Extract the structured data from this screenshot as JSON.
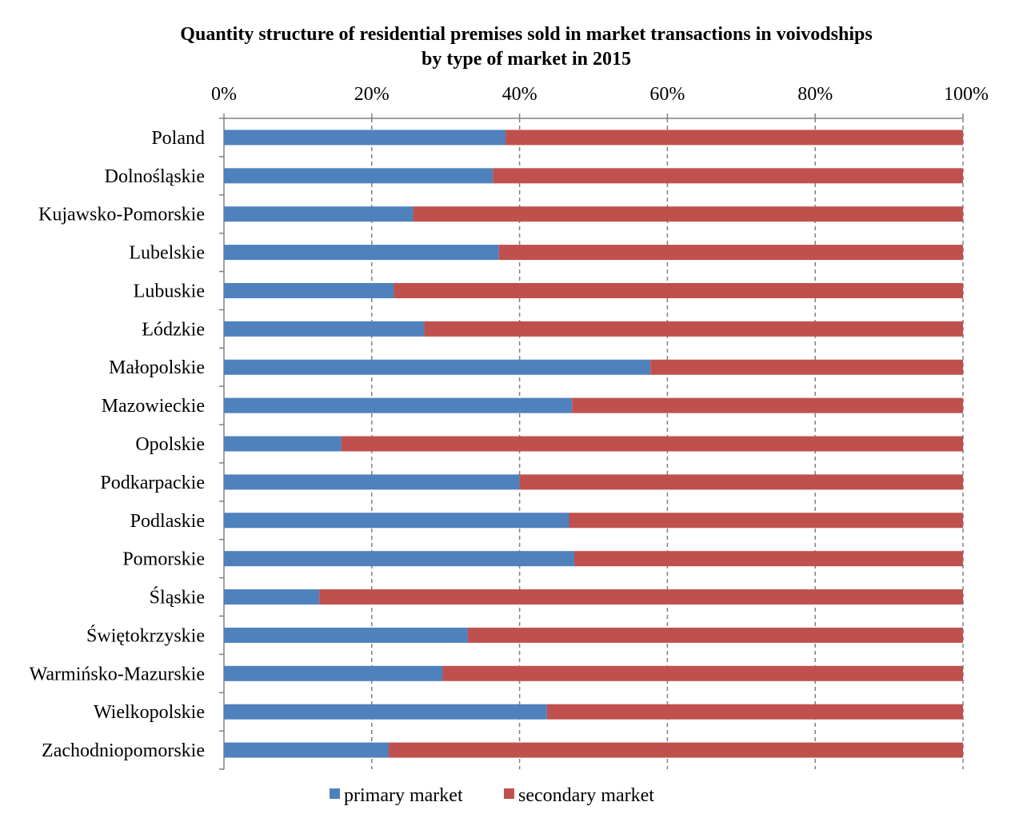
{
  "chart_data": {
    "type": "bar",
    "orientation": "horizontal",
    "stacked": "percent",
    "title": "Quantity structure of residential premises sold in market transactions in voivodships",
    "subtitle": "by type of market in 2015",
    "xlabel": "",
    "ylabel": "",
    "xlim": [
      0,
      100
    ],
    "x_ticks": [
      "0%",
      "20%",
      "40%",
      "60%",
      "80%",
      "100%"
    ],
    "x_tick_values": [
      0,
      20,
      40,
      60,
      80,
      100
    ],
    "grid": "vertical-dashed",
    "legend_position": "bottom",
    "categories": [
      "Poland",
      "Dolnośląskie",
      "Kujawsko-Pomorskie",
      "Lubelskie",
      "Lubuskie",
      "Łódzkie",
      "Małopolskie",
      "Mazowieckie",
      "Opolskie",
      "Podkarpackie",
      "Podlaskie",
      "Pomorskie",
      "Śląskie",
      "Świętokrzyskie",
      "Warmińsko-Mazurskie",
      "Wielkopolskie",
      "Zachodniopomorskie"
    ],
    "series": [
      {
        "name": "primary market",
        "color": "#4f81bd",
        "values": [
          38.1,
          36.4,
          25.6,
          37.2,
          23.0,
          27.1,
          57.7,
          47.1,
          15.9,
          40.0,
          46.7,
          47.4,
          12.9,
          33.0,
          29.6,
          43.7,
          22.3
        ]
      },
      {
        "name": "secondary market",
        "color": "#c0504d",
        "values": [
          61.9,
          63.6,
          74.4,
          62.8,
          77.0,
          72.9,
          42.3,
          52.9,
          84.1,
          60.0,
          53.3,
          52.6,
          87.1,
          67.0,
          70.4,
          56.3,
          77.7
        ]
      }
    ]
  }
}
